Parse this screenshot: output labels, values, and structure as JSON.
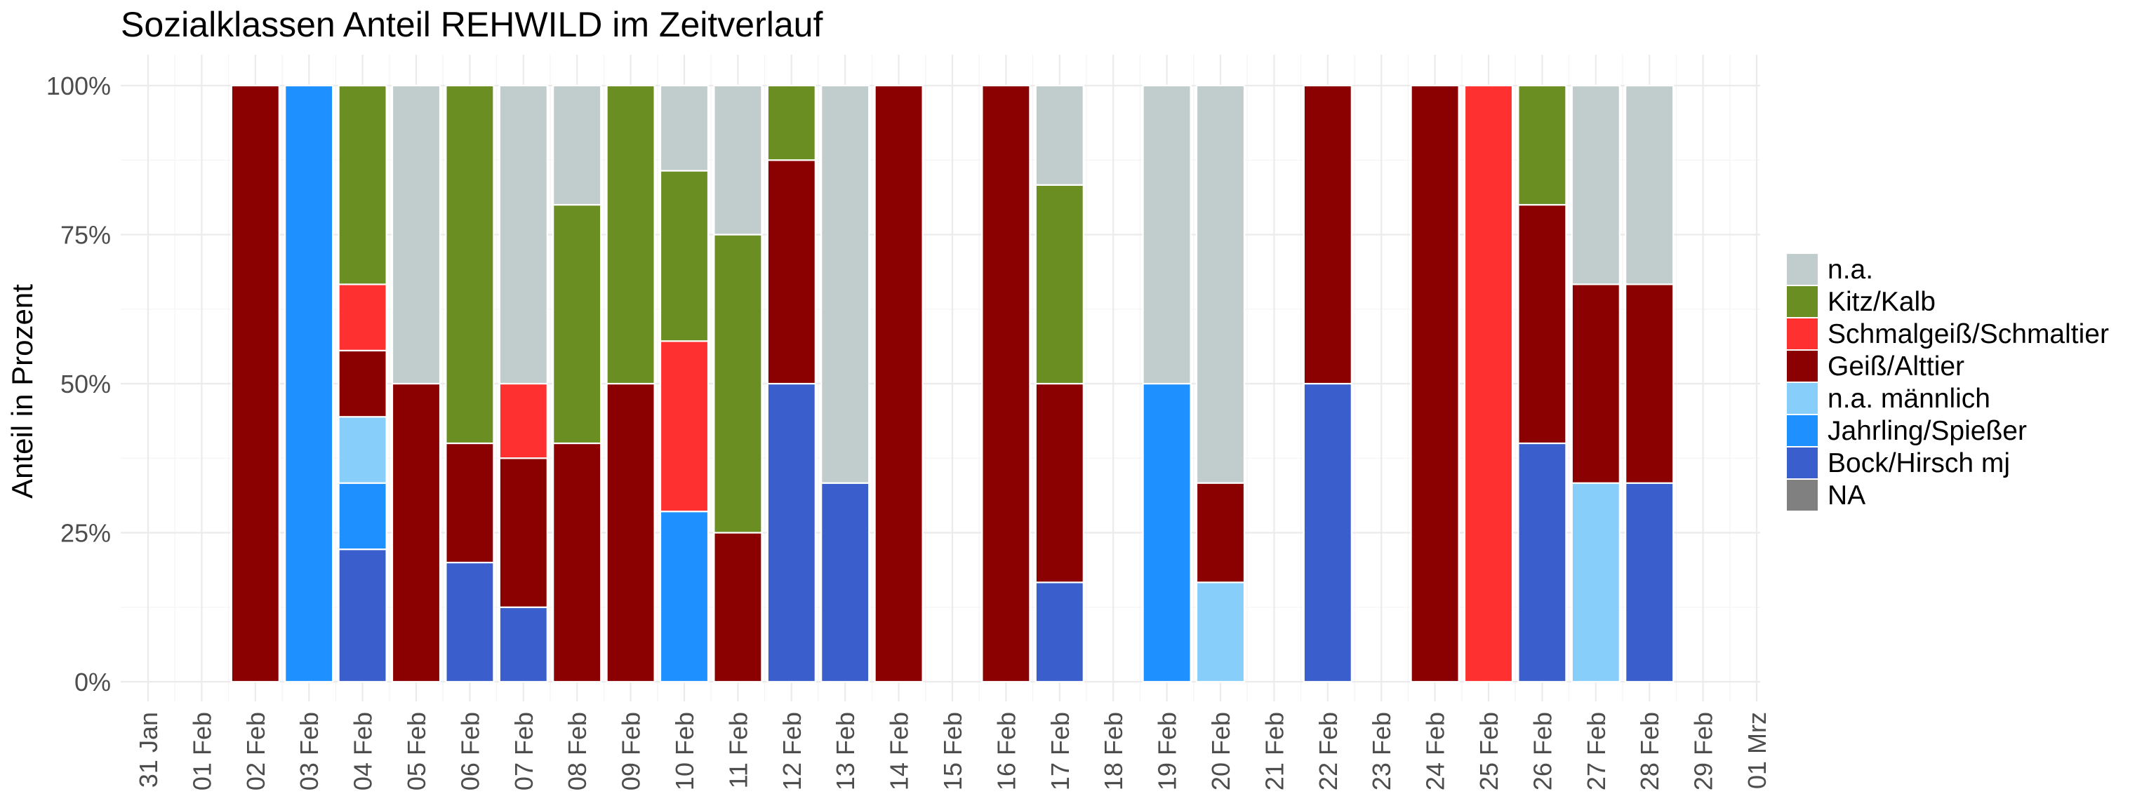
{
  "chart_data": {
    "type": "bar",
    "stacked": true,
    "title": "Sozialklassen Anteil REHWILD im Zeitverlauf",
    "xlabel": "",
    "ylabel": "Anteil in Prozent",
    "ylim": [
      0,
      1
    ],
    "y_ticks": [
      0,
      0.25,
      0.5,
      0.75,
      1
    ],
    "y_tick_labels": [
      "0%",
      "25%",
      "50%",
      "75%",
      "100%"
    ],
    "categories": [
      "31 Jan",
      "01 Feb",
      "02 Feb",
      "03 Feb",
      "04 Feb",
      "05 Feb",
      "06 Feb",
      "07 Feb",
      "08 Feb",
      "09 Feb",
      "10 Feb",
      "11 Feb",
      "12 Feb",
      "13 Feb",
      "14 Feb",
      "15 Feb",
      "16 Feb",
      "17 Feb",
      "18 Feb",
      "19 Feb",
      "20 Feb",
      "21 Feb",
      "22 Feb",
      "23 Feb",
      "24 Feb",
      "25 Feb",
      "26 Feb",
      "27 Feb",
      "28 Feb",
      "29 Feb",
      "01 Mrz"
    ],
    "legend": {
      "position": "right"
    },
    "series": [
      {
        "name": "Bock/Hirsch mj",
        "color": "#3a5fcd",
        "values": [
          0,
          0,
          0,
          0,
          0.2222,
          0,
          0.2,
          0.125,
          0,
          0,
          0,
          0,
          0.5,
          0.3333,
          0,
          0,
          0,
          0.1667,
          0,
          0,
          0,
          0,
          0.5,
          0,
          0,
          0,
          0.4,
          0,
          0.3333,
          0,
          0
        ]
      },
      {
        "name": "Jahrling/Spießer",
        "color": "#1e90ff",
        "values": [
          0,
          0,
          0,
          1,
          0.1111,
          0,
          0,
          0,
          0,
          0,
          0.2857,
          0,
          0,
          0,
          0,
          0,
          0,
          0,
          0,
          0.5,
          0,
          0,
          0,
          0,
          0,
          0,
          0,
          0,
          0,
          0,
          0
        ]
      },
      {
        "name": "n.a. männlich",
        "color": "#87cefa",
        "values": [
          0,
          0,
          0,
          0,
          0.1111,
          0,
          0,
          0,
          0,
          0,
          0,
          0,
          0,
          0,
          0,
          0,
          0,
          0,
          0,
          0,
          0.1667,
          0,
          0,
          0,
          0,
          0,
          0,
          0.3333,
          0,
          0,
          0
        ]
      },
      {
        "name": "Geiß/Alttier",
        "color": "#8b0000",
        "values": [
          0,
          0,
          1,
          0,
          0.1111,
          0.5,
          0.2,
          0.25,
          0.4,
          0.5,
          0,
          0.25,
          0.375,
          0,
          1,
          0,
          1,
          0.3333,
          0,
          0,
          0.1667,
          0,
          0.5,
          0,
          1,
          0,
          0.4,
          0.3333,
          0.3333,
          0,
          0
        ]
      },
      {
        "name": "Schmalgeiß/Schmaltier",
        "color": "#ff3030",
        "values": [
          0,
          0,
          0,
          0,
          0.1111,
          0,
          0,
          0.125,
          0,
          0,
          0.2857,
          0,
          0,
          0,
          0,
          0,
          0,
          0,
          0,
          0,
          0,
          0,
          0,
          0,
          0,
          1,
          0,
          0,
          0,
          0,
          0
        ]
      },
      {
        "name": "Kitz/Kalb",
        "color": "#6b8e23",
        "values": [
          0,
          0,
          0,
          0,
          0.3333,
          0,
          0.6,
          0,
          0.4,
          0.5,
          0.2857,
          0.5,
          0.125,
          0,
          0,
          0,
          0,
          0.3333,
          0,
          0,
          0,
          0,
          0,
          0,
          0,
          0,
          0.2,
          0,
          0,
          0,
          0
        ]
      },
      {
        "name": "n.a.",
        "color": "#c1cdcd",
        "values": [
          0,
          0,
          0,
          0,
          0,
          0.5,
          0,
          0.5,
          0.2,
          0,
          0.1429,
          0.25,
          0,
          0.6667,
          0,
          0,
          0,
          0.1667,
          0,
          0.5,
          0.6667,
          0,
          0,
          0,
          0,
          0,
          0,
          0.3333,
          0.3333,
          0,
          0
        ]
      },
      {
        "name": "NA",
        "color": "#808080",
        "values": [
          0,
          0,
          0,
          0,
          0,
          0,
          0,
          0,
          0,
          0,
          0,
          0,
          0,
          0,
          0,
          0,
          0,
          0,
          0,
          0,
          0,
          0,
          0,
          0,
          0,
          0,
          0,
          0,
          0,
          0,
          0
        ]
      }
    ],
    "legend_order": [
      "n.a.",
      "Kitz/Kalb",
      "Schmalgeiß/Schmaltier",
      "Geiß/Alttier",
      "n.a. männlich",
      "Jahrling/Spießer",
      "Bock/Hirsch mj",
      "NA"
    ]
  }
}
